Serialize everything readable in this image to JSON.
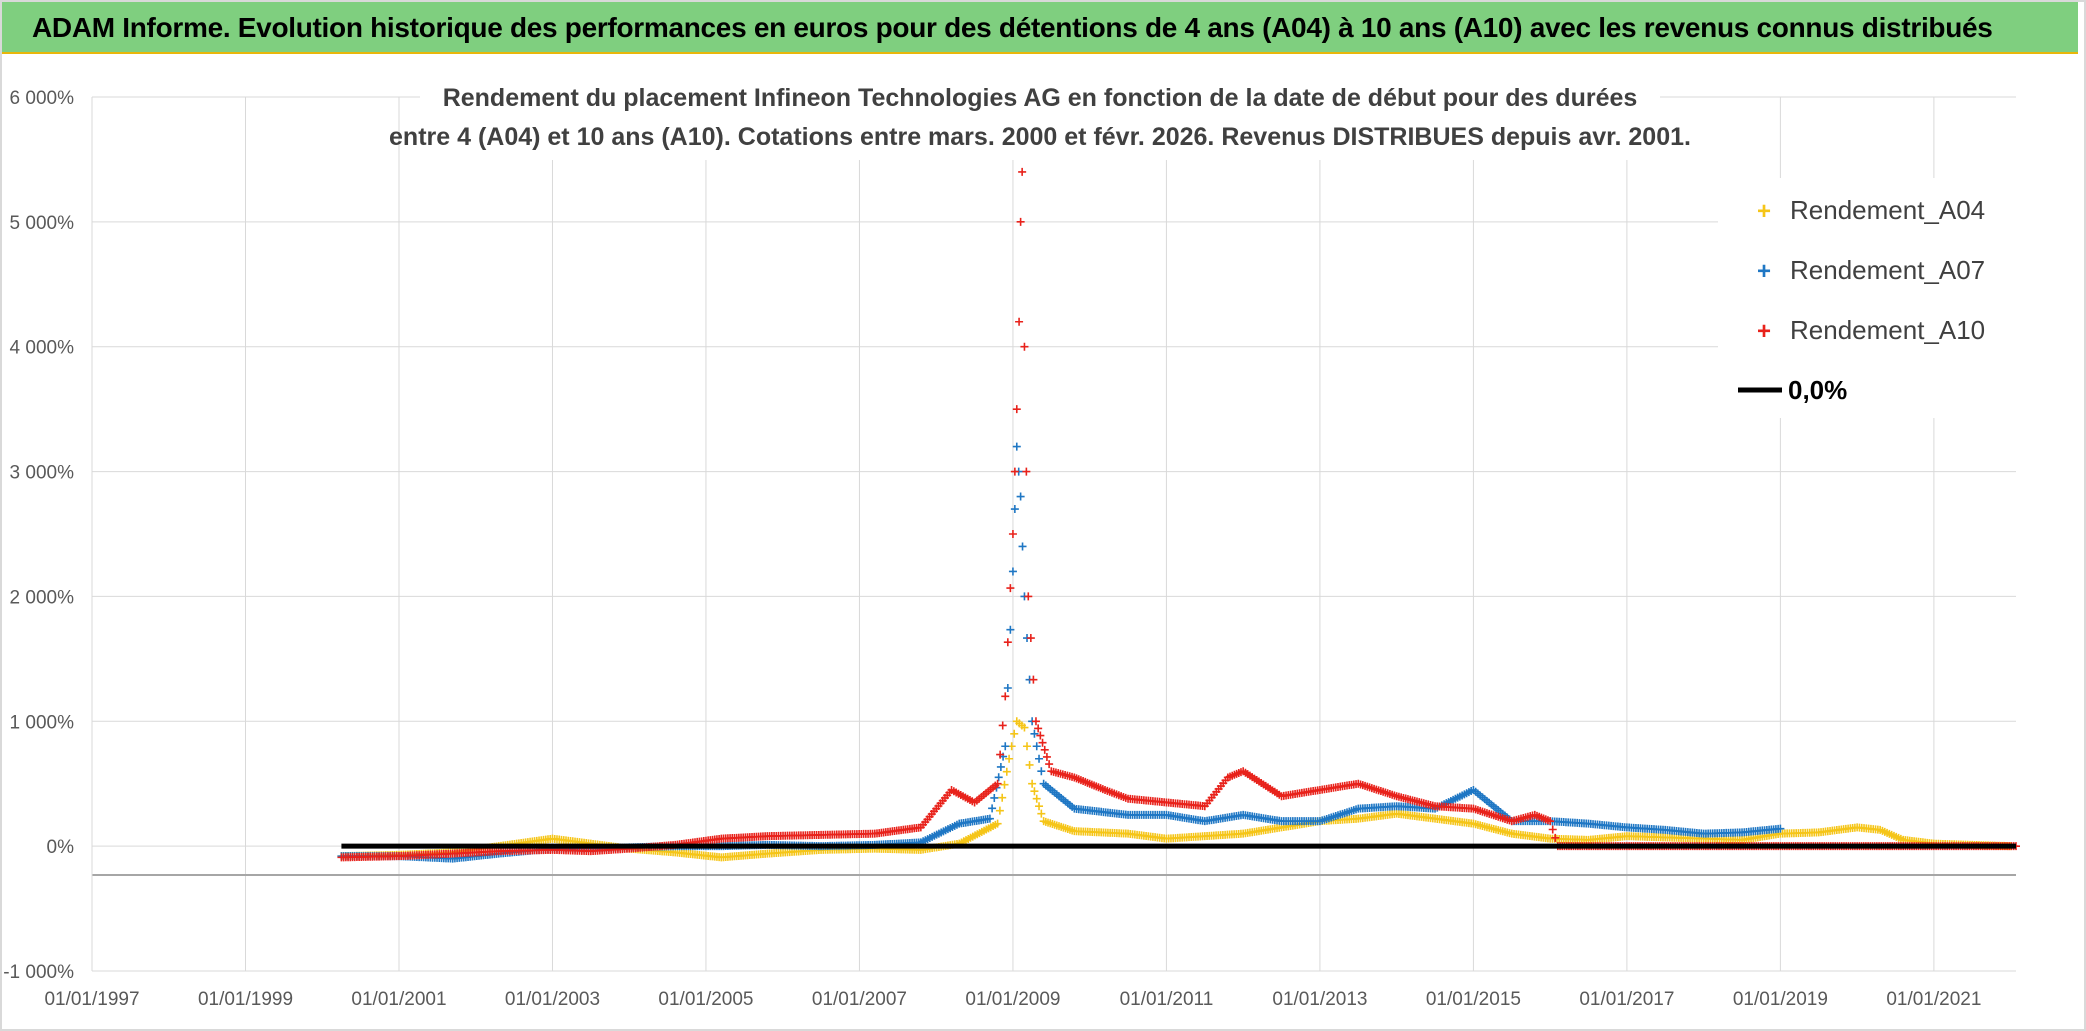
{
  "banner": {
    "title": "ADAM Informe. Evolution historique des performances en euros pour des détentions de 4 ans (A04) à 10 ans (A10) avec les revenus connus distribués"
  },
  "chart_data": {
    "type": "scatter",
    "title_line1": "Rendement du placement Infineon Technologies AG en fonction de la date de début pour des durées",
    "title_line2": "entre 4 (A04) et 10 ans (A10). Cotations entre mars. 2000 et févr. 2026. Revenus DISTRIBUES depuis avr. 2001.",
    "xlabel": "",
    "ylabel": "",
    "xlim": [
      1997.0,
      2022.07
    ],
    "ylim": [
      -1000,
      6000
    ],
    "y_ticks": [
      {
        "value": 6000,
        "label": "6 000%"
      },
      {
        "value": 5000,
        "label": "5 000%"
      },
      {
        "value": 4000,
        "label": "4 000%"
      },
      {
        "value": 3000,
        "label": "3 000%"
      },
      {
        "value": 2000,
        "label": "2 000%"
      },
      {
        "value": 1000,
        "label": "1 000%"
      },
      {
        "value": 0,
        "label": "0%"
      },
      {
        "value": -1000,
        "label": "-1 000%"
      }
    ],
    "x_ticks": [
      {
        "value": 1997,
        "label": "01/01/1997"
      },
      {
        "value": 1999,
        "label": "01/01/1999"
      },
      {
        "value": 2001,
        "label": "01/01/2001"
      },
      {
        "value": 2003,
        "label": "01/01/2003"
      },
      {
        "value": 2005,
        "label": "01/01/2005"
      },
      {
        "value": 2007,
        "label": "01/01/2007"
      },
      {
        "value": 2009,
        "label": "01/01/2009"
      },
      {
        "value": 2011,
        "label": "01/01/2011"
      },
      {
        "value": 2013,
        "label": "01/01/2013"
      },
      {
        "value": 2015,
        "label": "01/01/2015"
      },
      {
        "value": 2017,
        "label": "01/01/2017"
      },
      {
        "value": 2019,
        "label": "01/01/2019"
      },
      {
        "value": 2021,
        "label": "01/01/2021"
      }
    ],
    "grid": true,
    "legend_position": "top-right",
    "series": [
      {
        "name": "Rendement_A04",
        "color": "#f5c518",
        "marker": "+",
        "points": [
          [
            2000.25,
            -80
          ],
          [
            2001.0,
            -70
          ],
          [
            2001.7,
            -50
          ],
          [
            2002.3,
            0
          ],
          [
            2003.0,
            60
          ],
          [
            2003.5,
            20
          ],
          [
            2004.0,
            -20
          ],
          [
            2004.6,
            -50
          ],
          [
            2005.2,
            -90
          ],
          [
            2005.8,
            -60
          ],
          [
            2006.5,
            -30
          ],
          [
            2007.2,
            -20
          ],
          [
            2007.8,
            -30
          ],
          [
            2008.3,
            20
          ],
          [
            2008.8,
            180
          ],
          [
            2008.95,
            700
          ],
          [
            2009.05,
            1000
          ],
          [
            2009.15,
            950
          ],
          [
            2009.25,
            500
          ],
          [
            2009.4,
            200
          ],
          [
            2009.8,
            120
          ],
          [
            2010.5,
            100
          ],
          [
            2011.0,
            60
          ],
          [
            2011.5,
            80
          ],
          [
            2012.0,
            100
          ],
          [
            2012.5,
            150
          ],
          [
            2013.0,
            200
          ],
          [
            2013.5,
            220
          ],
          [
            2014.0,
            260
          ],
          [
            2014.5,
            220
          ],
          [
            2015.0,
            180
          ],
          [
            2015.5,
            100
          ],
          [
            2016.0,
            60
          ],
          [
            2016.5,
            50
          ],
          [
            2017.0,
            80
          ],
          [
            2017.5,
            70
          ],
          [
            2018.0,
            60
          ],
          [
            2018.5,
            50
          ],
          [
            2019.0,
            100
          ],
          [
            2019.5,
            110
          ],
          [
            2020.0,
            150
          ],
          [
            2020.3,
            130
          ],
          [
            2020.6,
            50
          ],
          [
            2021.0,
            20
          ],
          [
            2021.5,
            10
          ],
          [
            2022.0,
            0
          ]
        ]
      },
      {
        "name": "Rendement_A07",
        "color": "#1f77c4",
        "marker": "+",
        "points": [
          [
            2000.25,
            -80
          ],
          [
            2001.0,
            -80
          ],
          [
            2001.7,
            -100
          ],
          [
            2002.3,
            -60
          ],
          [
            2003.0,
            -20
          ],
          [
            2003.5,
            -20
          ],
          [
            2004.0,
            -10
          ],
          [
            2004.6,
            0
          ],
          [
            2005.2,
            0
          ],
          [
            2005.8,
            10
          ],
          [
            2006.5,
            0
          ],
          [
            2007.2,
            10
          ],
          [
            2007.8,
            30
          ],
          [
            2008.3,
            180
          ],
          [
            2008.7,
            220
          ],
          [
            2008.9,
            800
          ],
          [
            2009.0,
            2200
          ],
          [
            2009.05,
            3200
          ],
          [
            2009.1,
            2800
          ],
          [
            2009.15,
            2000
          ],
          [
            2009.25,
            1000
          ],
          [
            2009.4,
            500
          ],
          [
            2009.8,
            300
          ],
          [
            2010.5,
            250
          ],
          [
            2011.0,
            250
          ],
          [
            2011.5,
            200
          ],
          [
            2012.0,
            250
          ],
          [
            2012.5,
            200
          ],
          [
            2013.0,
            200
          ],
          [
            2013.5,
            300
          ],
          [
            2014.0,
            320
          ],
          [
            2014.5,
            300
          ],
          [
            2015.0,
            450
          ],
          [
            2015.5,
            200
          ],
          [
            2016.0,
            200
          ],
          [
            2016.5,
            180
          ],
          [
            2017.0,
            150
          ],
          [
            2017.5,
            130
          ],
          [
            2018.0,
            100
          ],
          [
            2018.5,
            110
          ],
          [
            2019.0,
            140
          ]
        ]
      },
      {
        "name": "Rendement_A10",
        "color": "#e8221b",
        "marker": "+",
        "points": [
          [
            2000.25,
            -90
          ],
          [
            2001.0,
            -80
          ],
          [
            2001.7,
            -60
          ],
          [
            2002.3,
            -40
          ],
          [
            2003.0,
            -30
          ],
          [
            2003.5,
            -40
          ],
          [
            2004.0,
            -20
          ],
          [
            2004.6,
            10
          ],
          [
            2005.2,
            60
          ],
          [
            2005.8,
            80
          ],
          [
            2006.5,
            90
          ],
          [
            2007.2,
            100
          ],
          [
            2007.8,
            150
          ],
          [
            2008.2,
            450
          ],
          [
            2008.5,
            350
          ],
          [
            2008.8,
            500
          ],
          [
            2008.9,
            1200
          ],
          [
            2009.0,
            2500
          ],
          [
            2009.05,
            3500
          ],
          [
            2009.08,
            4200
          ],
          [
            2009.1,
            5000
          ],
          [
            2009.12,
            5400
          ],
          [
            2009.15,
            4000
          ],
          [
            2009.2,
            2000
          ],
          [
            2009.3,
            1000
          ],
          [
            2009.5,
            600
          ],
          [
            2009.8,
            550
          ],
          [
            2010.2,
            450
          ],
          [
            2010.5,
            380
          ],
          [
            2011.0,
            350
          ],
          [
            2011.5,
            320
          ],
          [
            2011.8,
            550
          ],
          [
            2012.0,
            600
          ],
          [
            2012.5,
            400
          ],
          [
            2013.0,
            450
          ],
          [
            2013.5,
            500
          ],
          [
            2014.0,
            400
          ],
          [
            2014.5,
            320
          ],
          [
            2015.0,
            300
          ],
          [
            2015.5,
            200
          ],
          [
            2015.8,
            250
          ],
          [
            2016.0,
            200
          ],
          [
            2016.1,
            0
          ],
          [
            2017.0,
            0
          ],
          [
            2018.0,
            0
          ],
          [
            2019.0,
            0
          ],
          [
            2020.0,
            0
          ],
          [
            2021.0,
            0
          ],
          [
            2022.07,
            0
          ]
        ]
      },
      {
        "name": "0,0%",
        "color": "#000000",
        "marker": "line",
        "points": [
          [
            2000.25,
            0
          ],
          [
            2022.07,
            0
          ]
        ]
      }
    ]
  }
}
